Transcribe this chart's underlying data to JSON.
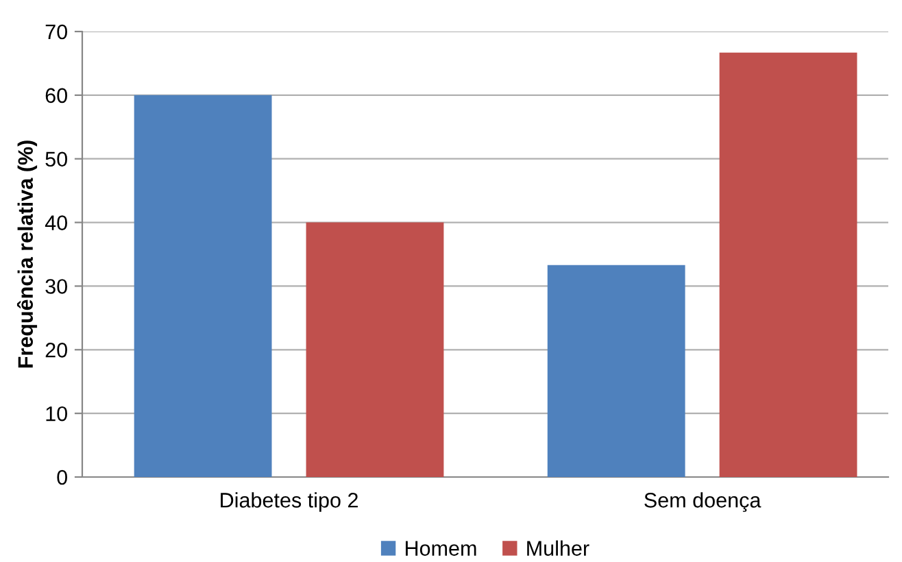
{
  "chart_data": {
    "type": "bar",
    "ylabel": "Frequência relativa (%)",
    "categories": [
      "Diabetes tipo 2",
      "Sem doença"
    ],
    "series": [
      {
        "name": "Homem",
        "color": "#4f81bd",
        "values": [
          60,
          33.3
        ]
      },
      {
        "name": "Mulher",
        "color": "#c0504d",
        "values": [
          40,
          66.7
        ]
      }
    ],
    "ylim": [
      0,
      70
    ],
    "yticks": [
      0,
      10,
      20,
      30,
      40,
      50,
      60,
      70
    ],
    "grid": "y",
    "legend": "bottom"
  }
}
